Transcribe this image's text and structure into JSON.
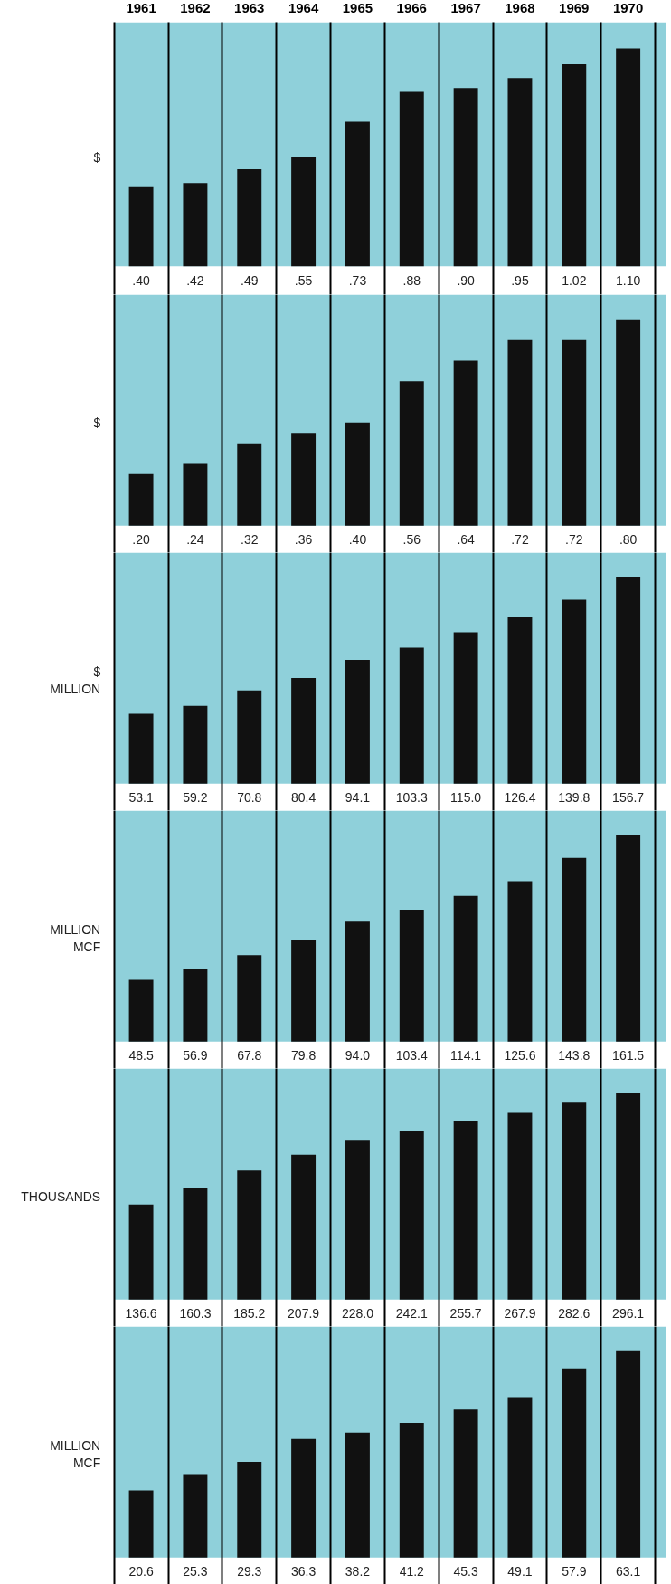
{
  "chart_data": [
    {
      "type": "bar",
      "ylabel": "$",
      "categories": [
        "1961",
        "1962",
        "1963",
        "1964",
        "1965",
        "1966",
        "1967",
        "1968",
        "1969",
        "1970"
      ],
      "values": [
        0.4,
        0.42,
        0.49,
        0.55,
        0.73,
        0.88,
        0.9,
        0.95,
        1.02,
        1.1
      ],
      "value_labels": [
        ".40",
        ".42",
        ".49",
        ".55",
        ".73",
        ".88",
        ".90",
        ".95",
        "1.02",
        "1.10"
      ],
      "color": "#111111",
      "tick_labels": "x",
      "grid": "x"
    },
    {
      "type": "bar",
      "ylabel": "$",
      "categories": [
        "1961",
        "1962",
        "1963",
        "1964",
        "1965",
        "1966",
        "1967",
        "1968",
        "1969",
        "1970"
      ],
      "values": [
        0.2,
        0.24,
        0.32,
        0.36,
        0.4,
        0.56,
        0.64,
        0.72,
        0.72,
        0.8
      ],
      "value_labels": [
        ".20",
        ".24",
        ".32",
        ".36",
        ".40",
        ".56",
        ".64",
        ".72",
        ".72",
        ".80"
      ],
      "color": "#111111",
      "tick_labels": false,
      "grid": "x"
    },
    {
      "type": "bar",
      "ylabel": "$\nMILLION",
      "categories": [
        "1961",
        "1962",
        "1963",
        "1964",
        "1965",
        "1966",
        "1967",
        "1968",
        "1969",
        "1970"
      ],
      "values": [
        53.1,
        59.2,
        70.8,
        80.4,
        94.1,
        103.3,
        115.0,
        126.4,
        139.8,
        156.7
      ],
      "value_labels": [
        "53.1",
        "59.2",
        "70.8",
        "80.4",
        "94.1",
        "103.3",
        "115.0",
        "126.4",
        "139.8",
        "156.7"
      ],
      "color": "#111111",
      "tick_labels": false,
      "grid": "x"
    },
    {
      "type": "bar",
      "ylabel": "MILLION\nMCF",
      "categories": [
        "1961",
        "1962",
        "1963",
        "1964",
        "1965",
        "1966",
        "1967",
        "1968",
        "1969",
        "1970"
      ],
      "values": [
        48.5,
        56.9,
        67.8,
        79.8,
        94.0,
        103.4,
        114.1,
        125.6,
        143.8,
        161.5
      ],
      "value_labels": [
        "48.5",
        "56.9",
        "67.8",
        "79.8",
        "94.0",
        "103.4",
        "114.1",
        "125.6",
        "143.8",
        "161.5"
      ],
      "color": "#111111",
      "tick_labels": false,
      "grid": "x"
    },
    {
      "type": "bar",
      "ylabel": "THOUSANDS",
      "categories": [
        "1961",
        "1962",
        "1963",
        "1964",
        "1965",
        "1966",
        "1967",
        "1968",
        "1969",
        "1970"
      ],
      "values": [
        136.6,
        160.3,
        185.2,
        207.9,
        228.0,
        242.1,
        255.7,
        267.9,
        282.6,
        296.1
      ],
      "value_labels": [
        "136.6",
        "160.3",
        "185.2",
        "207.9",
        "228.0",
        "242.1",
        "255.7",
        "267.9",
        "282.6",
        "296.1"
      ],
      "color": "#111111",
      "tick_labels": false,
      "grid": "x"
    },
    {
      "type": "bar",
      "ylabel": "MILLION\nMCF",
      "categories": [
        "1961",
        "1962",
        "1963",
        "1964",
        "1965",
        "1966",
        "1967",
        "1968",
        "1969",
        "1970"
      ],
      "values": [
        20.6,
        25.3,
        29.3,
        36.3,
        38.2,
        41.2,
        45.3,
        49.1,
        57.9,
        63.1
      ],
      "value_labels": [
        "20.6",
        "25.3",
        "29.3",
        "36.3",
        "38.2",
        "41.2",
        "45.3",
        "49.1",
        "57.9",
        "63.1"
      ],
      "color": "#111111",
      "tick_labels": false,
      "grid": "x"
    }
  ]
}
